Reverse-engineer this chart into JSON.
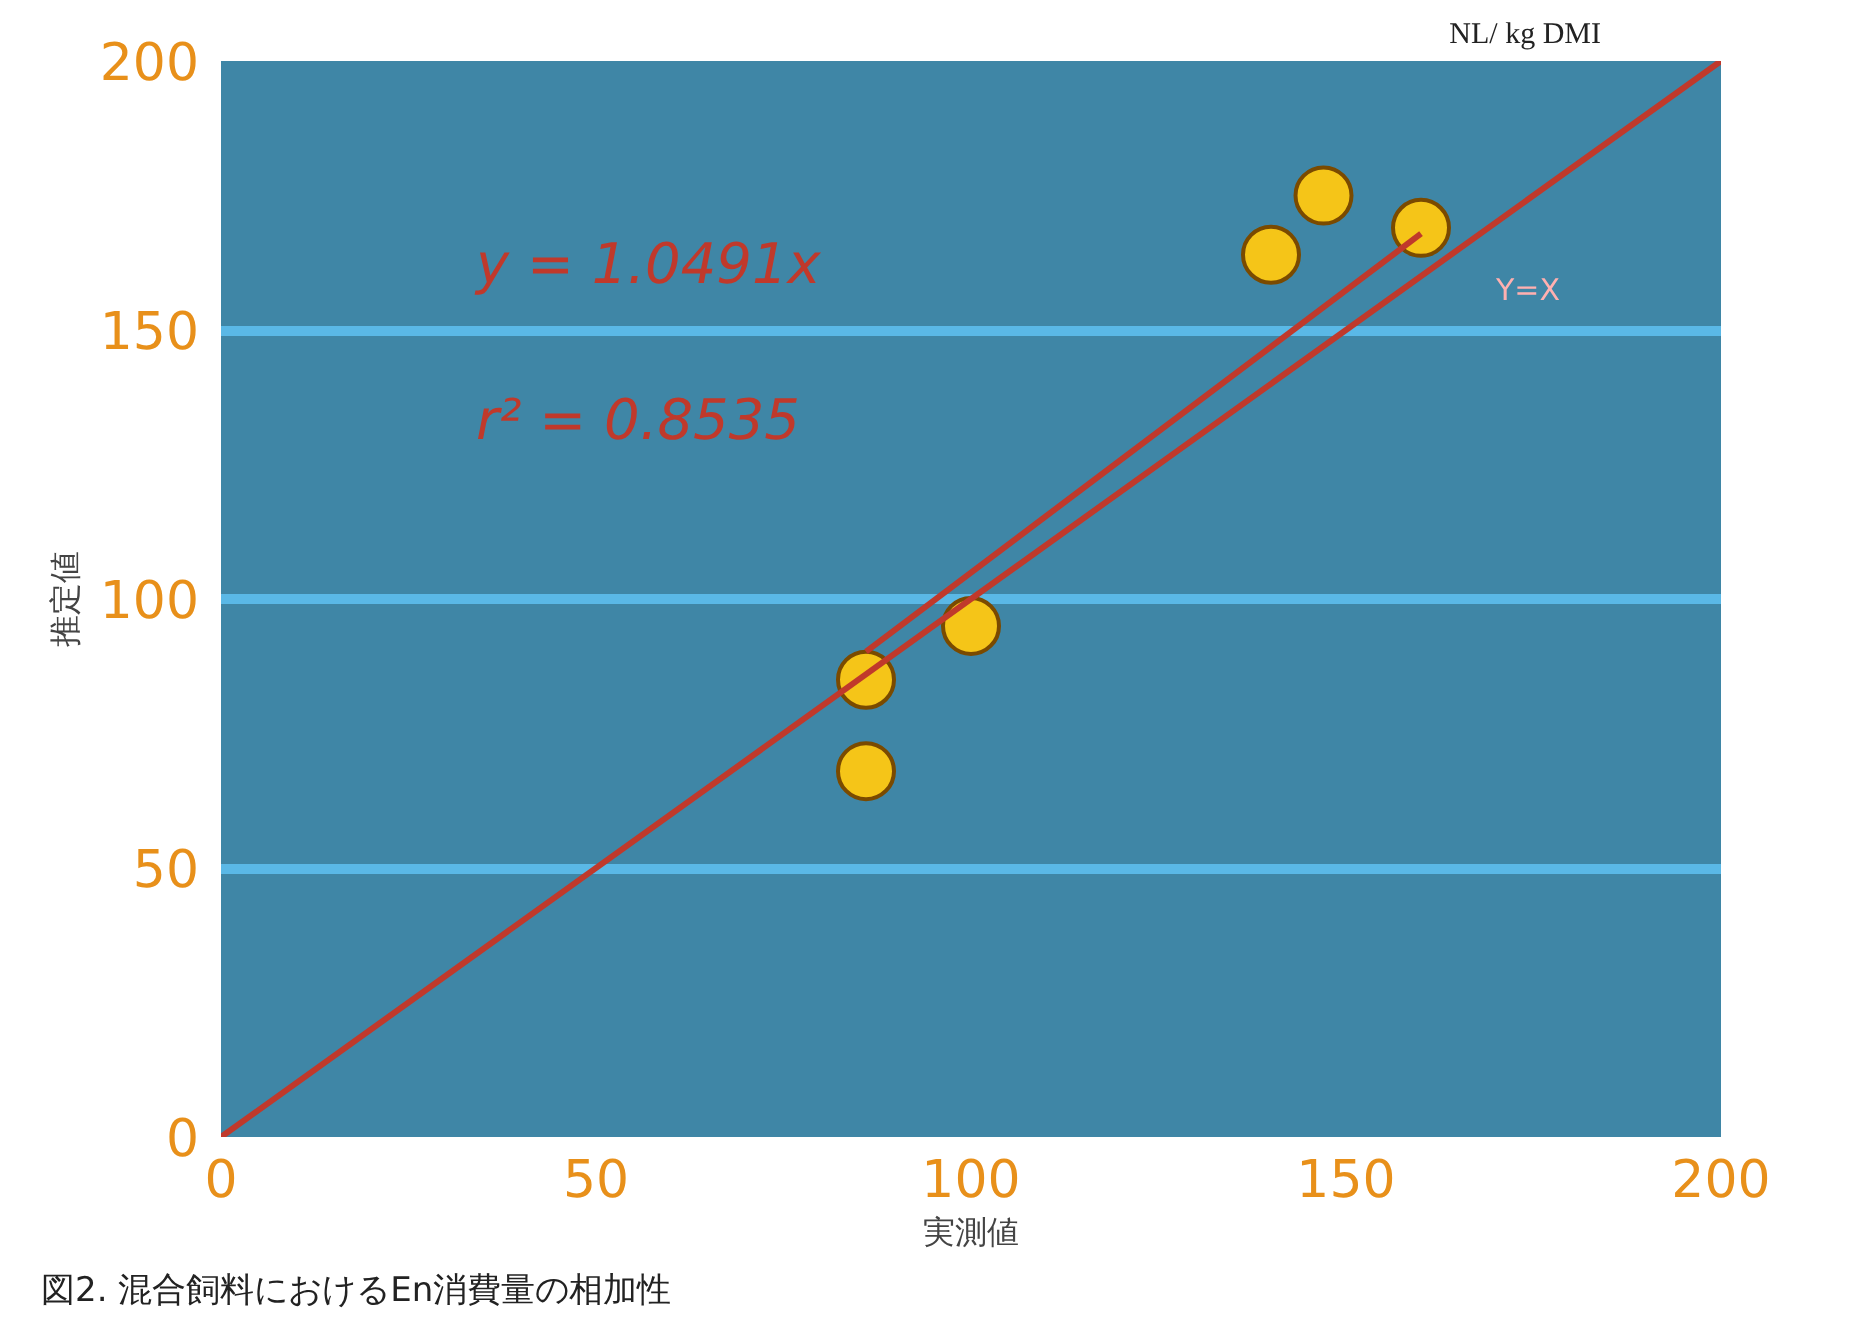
{
  "chart_data": {
    "type": "scatter",
    "xlabel": "実測値",
    "ylabel": "推定値",
    "xlim": [
      0,
      200
    ],
    "ylim": [
      0,
      200
    ],
    "xticks": [
      0,
      50,
      100,
      150,
      200
    ],
    "yticks": [
      0,
      50,
      100,
      150,
      200
    ],
    "grid": "y",
    "marker": "circle",
    "series": [
      {
        "color": "#f5c518",
        "x": [
          86,
          86,
          100,
          140,
          147,
          160
        ],
        "values": [
          85,
          68,
          95,
          164,
          175,
          169
        ]
      },
      {
        "type": "line",
        "name": "Y=X",
        "color": "#c0392b",
        "marker": "none",
        "x": [
          0,
          200
        ],
        "values": [
          0,
          200
        ]
      },
      {
        "type": "line",
        "color": "#c0392b",
        "marker": "none",
        "x": [
          86,
          160
        ],
        "values": [
          90.2,
          167.9
        ]
      }
    ],
    "annotations": [
      "y = 1.0491x",
      "r² = 0.8535",
      "NL/ kg DMI",
      "図2. 混合飼料におけるEn消費量の相加性"
    ]
  }
}
